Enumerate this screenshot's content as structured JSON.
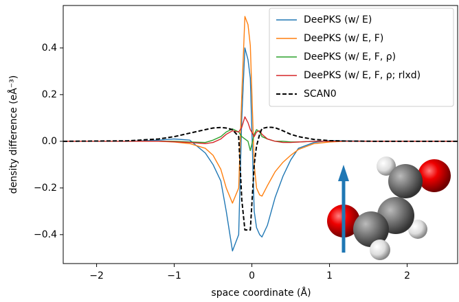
{
  "chart_data": {
    "type": "line",
    "xlabel": "space coordinate (Å)",
    "ylabel": "density difference (eÅ⁻³)",
    "x": [
      -2.43,
      -1.6,
      -1.2,
      -1.0,
      -0.8,
      -0.6,
      -0.5,
      -0.4,
      -0.33,
      -0.25,
      -0.17,
      -0.13,
      -0.09,
      -0.05,
      -0.02,
      0.03,
      0.06,
      0.1,
      0.13,
      0.2,
      0.25,
      0.3,
      0.4,
      0.5,
      0.6,
      0.8,
      1.0,
      1.2,
      1.6,
      2.65
    ],
    "series": [
      {
        "name": "DeePKS (w/ E)",
        "color": "#1f77b4",
        "dash": false,
        "values": [
          0,
          0,
          0.005,
          0.01,
          0.005,
          -0.05,
          -0.1,
          -0.17,
          -0.3,
          -0.47,
          -0.4,
          0.1,
          0.4,
          0.35,
          0.27,
          -0.3,
          -0.37,
          -0.4,
          -0.41,
          -0.36,
          -0.3,
          -0.24,
          -0.15,
          -0.08,
          -0.03,
          -0.005,
          0.003,
          0.002,
          0,
          0
        ]
      },
      {
        "name": "DeePKS (w/ E, F)",
        "color": "#ff7f0e",
        "dash": false,
        "values": [
          0,
          0,
          0,
          -0.003,
          -0.01,
          -0.03,
          -0.06,
          -0.12,
          -0.2,
          -0.265,
          -0.2,
          0.2,
          0.535,
          0.5,
          0.41,
          -0.1,
          -0.2,
          -0.23,
          -0.235,
          -0.19,
          -0.16,
          -0.13,
          -0.09,
          -0.06,
          -0.035,
          -0.01,
          -0.003,
          0,
          0,
          0
        ]
      },
      {
        "name": "DeePKS (w/ E, F, ρ)",
        "color": "#2ca02c",
        "dash": false,
        "values": [
          0,
          0,
          0,
          0,
          -0.003,
          -0.005,
          0.005,
          0.02,
          0.04,
          0.053,
          0.04,
          0.02,
          0.01,
          0,
          -0.04,
          0.03,
          0.05,
          0.04,
          0.02,
          0.01,
          0.005,
          0,
          0,
          -0.003,
          -0.003,
          0,
          0,
          0,
          0,
          0
        ]
      },
      {
        "name": "DeePKS (w/ E, F, ρ; rlxd)",
        "color": "#d62728",
        "dash": false,
        "values": [
          0,
          0,
          0,
          -0.002,
          -0.005,
          -0.01,
          -0.005,
          0.01,
          0.03,
          0.045,
          0.04,
          0.06,
          0.105,
          0.08,
          0.05,
          0.02,
          0.04,
          0.045,
          0.03,
          0.01,
          0.005,
          0,
          -0.005,
          -0.005,
          -0.003,
          0,
          0,
          0,
          0,
          0
        ]
      },
      {
        "name": "SCAN0",
        "color": "#000000",
        "dash": true,
        "values": [
          0,
          0.002,
          0.01,
          0.02,
          0.035,
          0.05,
          0.057,
          0.059,
          0.057,
          0.05,
          0.02,
          -0.25,
          -0.38,
          -0.38,
          -0.38,
          -0.1,
          -0.02,
          0.03,
          0.055,
          0.06,
          0.06,
          0.058,
          0.045,
          0.03,
          0.02,
          0.008,
          0.003,
          0.001,
          0,
          0
        ]
      }
    ],
    "xlim": [
      -2.43,
      2.65
    ],
    "ylim": [
      -0.524,
      0.582
    ],
    "xticks": [
      {
        "value": -2,
        "label": "−2"
      },
      {
        "value": -1,
        "label": "−1"
      },
      0,
      1,
      2
    ],
    "yticks": [
      {
        "value": -0.4,
        "label": "−0.4"
      },
      {
        "value": -0.2,
        "label": "−0.2"
      },
      {
        "value": 0,
        "label": "0.0"
      },
      0.2,
      0.4
    ],
    "legend": "upper right"
  }
}
